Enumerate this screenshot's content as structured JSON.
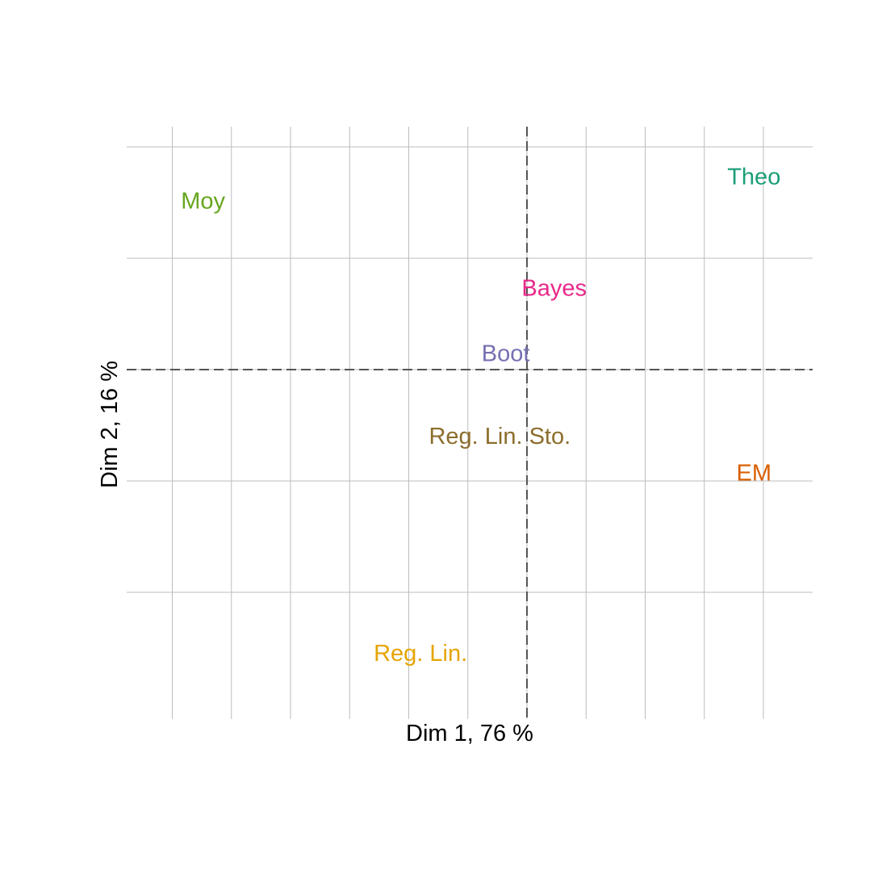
{
  "chart_data": {
    "type": "scatter",
    "xlabel": "Dim 1, 76 %",
    "ylabel": "Dim 2, 16 %",
    "xlim": [
      -3.35,
      2.45
    ],
    "ylim": [
      -2.1,
      2.0
    ],
    "grid": true,
    "x_gridlines": [
      -3.0,
      -2.5,
      -2.0,
      -1.5,
      -1.0,
      -0.5,
      0.0,
      0.5,
      1.0,
      1.5,
      2.0
    ],
    "y_gridlines": [
      -2.0,
      -1.0,
      0.0,
      1.0,
      2.0
    ],
    "reference_lines": {
      "x": 0,
      "y": 0
    },
    "points": [
      {
        "label": "Theo",
        "x": 1.92,
        "y": 1.72,
        "color": "#1b9e77"
      },
      {
        "label": "Moy",
        "x": -2.74,
        "y": 1.5,
        "color": "#66a61e"
      },
      {
        "label": "Bayes",
        "x": 0.23,
        "y": 0.72,
        "color": "#e7298a"
      },
      {
        "label": "Boot",
        "x": -0.18,
        "y": 0.13,
        "color": "#7570b3"
      },
      {
        "label": "Reg. Lin. Sto.",
        "x": -0.23,
        "y": -0.61,
        "color": "#8c6d2c"
      },
      {
        "label": "EM",
        "x": 1.92,
        "y": -0.94,
        "color": "#d95f02"
      },
      {
        "label": "Reg. Lin.",
        "x": -0.9,
        "y": -2.56,
        "color": "#e6a400"
      }
    ]
  }
}
